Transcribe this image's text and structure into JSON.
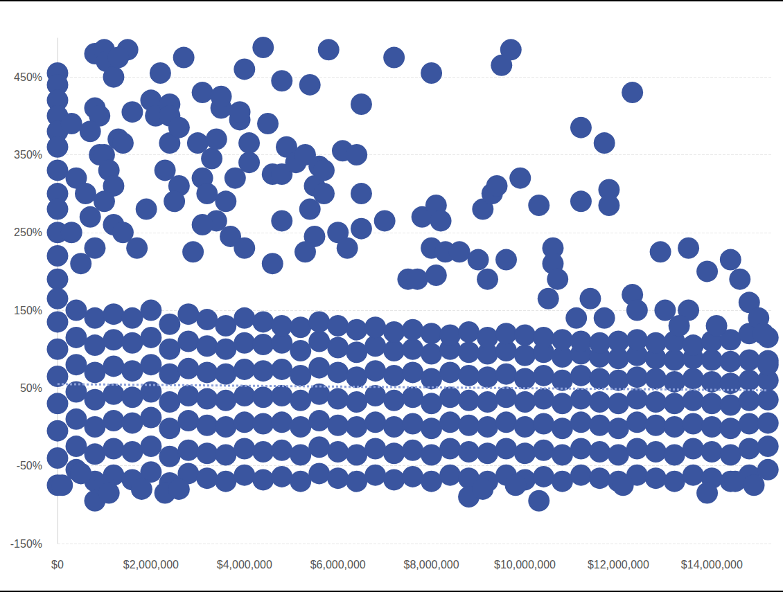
{
  "chart_data": {
    "type": "scatter",
    "xlim": [
      0,
      15300000
    ],
    "xticks": [
      {
        "value": 0,
        "label": "$0"
      },
      {
        "value": 2000000,
        "label": "$2,000,000"
      },
      {
        "value": 4000000,
        "label": "$4,000,000"
      },
      {
        "value": 6000000,
        "label": "$6,000,000"
      },
      {
        "value": 8000000,
        "label": "$8,000,000"
      },
      {
        "value": 10000000,
        "label": "$10,000,000"
      },
      {
        "value": 12000000,
        "label": "$12,000,000"
      },
      {
        "value": 14000000,
        "label": "$14,000,000"
      }
    ],
    "ylim": [
      -150,
      500
    ],
    "yticks": [
      {
        "value": -150,
        "label": "-150%"
      },
      {
        "value": -50,
        "label": "-50%"
      },
      {
        "value": 50,
        "label": "50%"
      },
      {
        "value": 150,
        "label": "150%"
      },
      {
        "value": 250,
        "label": "250%"
      },
      {
        "value": 350,
        "label": "350%"
      },
      {
        "value": 450,
        "label": "450%"
      }
    ],
    "grid": true,
    "series": [
      {
        "type": "scatter",
        "color": "#3a559f",
        "marker": "circle",
        "x": [
          0,
          0,
          0,
          0,
          0,
          0,
          0,
          400000,
          400000,
          400000,
          400000,
          400000,
          400000,
          400000,
          800000,
          800000,
          800000,
          800000,
          800000,
          800000,
          800000,
          1200000,
          1200000,
          1200000,
          1200000,
          1200000,
          1200000,
          1200000,
          1600000,
          1600000,
          1600000,
          1600000,
          1600000,
          1600000,
          1600000,
          2000000,
          2000000,
          2000000,
          2000000,
          2000000,
          2000000,
          2000000,
          2400000,
          2400000,
          2400000,
          2400000,
          2400000,
          2400000,
          2400000,
          2800000,
          2800000,
          2800000,
          2800000,
          2800000,
          2800000,
          2800000,
          3200000,
          3200000,
          3200000,
          3200000,
          3200000,
          3200000,
          3200000,
          3600000,
          3600000,
          3600000,
          3600000,
          3600000,
          3600000,
          3600000,
          4000000,
          4000000,
          4000000,
          4000000,
          4000000,
          4000000,
          4000000,
          4400000,
          4400000,
          4400000,
          4400000,
          4400000,
          4400000,
          4400000,
          4800000,
          4800000,
          4800000,
          4800000,
          4800000,
          4800000,
          4800000,
          5200000,
          5200000,
          5200000,
          5200000,
          5200000,
          5200000,
          5200000,
          5600000,
          5600000,
          5600000,
          5600000,
          5600000,
          5600000,
          5600000,
          6000000,
          6000000,
          6000000,
          6000000,
          6000000,
          6000000,
          6000000,
          6400000,
          6400000,
          6400000,
          6400000,
          6400000,
          6400000,
          6400000,
          6800000,
          6800000,
          6800000,
          6800000,
          6800000,
          6800000,
          6800000,
          7200000,
          7200000,
          7200000,
          7200000,
          7200000,
          7200000,
          7200000,
          7600000,
          7600000,
          7600000,
          7600000,
          7600000,
          7600000,
          7600000,
          8000000,
          8000000,
          8000000,
          8000000,
          8000000,
          8000000,
          8000000,
          8400000,
          8400000,
          8400000,
          8400000,
          8400000,
          8400000,
          8400000,
          8800000,
          8800000,
          8800000,
          8800000,
          8800000,
          8800000,
          8800000,
          9200000,
          9200000,
          9200000,
          9200000,
          9200000,
          9200000,
          9200000,
          9600000,
          9600000,
          9600000,
          9600000,
          9600000,
          9600000,
          9600000,
          10000000,
          10000000,
          10000000,
          10000000,
          10000000,
          10000000,
          10000000,
          10400000,
          10400000,
          10400000,
          10400000,
          10400000,
          10400000,
          10400000,
          10800000,
          10800000,
          10800000,
          10800000,
          10800000,
          10800000,
          10800000,
          11200000,
          11200000,
          11200000,
          11200000,
          11200000,
          11200000,
          11200000,
          11600000,
          11600000,
          11600000,
          11600000,
          11600000,
          11600000,
          11600000,
          12000000,
          12000000,
          12000000,
          12000000,
          12000000,
          12000000,
          12000000,
          12400000,
          12400000,
          12400000,
          12400000,
          12400000,
          12400000,
          12400000,
          12800000,
          12800000,
          12800000,
          12800000,
          12800000,
          12800000,
          12800000,
          13200000,
          13200000,
          13200000,
          13200000,
          13200000,
          13200000,
          13200000,
          13600000,
          13600000,
          13600000,
          13600000,
          13600000,
          13600000,
          13600000,
          14000000,
          14000000,
          14000000,
          14000000,
          14000000,
          14000000,
          14000000,
          14400000,
          14400000,
          14400000,
          14400000,
          14400000,
          14400000,
          14400000,
          14800000,
          14800000,
          14800000,
          14800000,
          14800000,
          14800000,
          14800000,
          15200000,
          15200000,
          15200000,
          15200000,
          15200000,
          15200000,
          15200000,
          0,
          0,
          0,
          0,
          0,
          0,
          0,
          0,
          0,
          0,
          0,
          0,
          0,
          100000,
          300000,
          400000,
          300000,
          500000,
          800000,
          800000,
          900000,
          1000000,
          1050000,
          1200000,
          1500000,
          1300000,
          900000,
          1000000,
          1100000,
          1200000,
          1300000,
          1400000,
          1600000,
          700000,
          600000,
          700000,
          800000,
          1000000,
          1200000,
          1400000,
          1700000,
          1900000,
          2000000,
          2200000,
          2100000,
          2400000,
          2400000,
          2400000,
          2300000,
          2600000,
          2700000,
          2600000,
          2500000,
          3100000,
          3000000,
          3100000,
          3300000,
          3400000,
          3500000,
          3500000,
          3200000,
          3400000,
          3600000,
          3100000,
          2900000,
          4000000,
          3900000,
          3900000,
          3800000,
          4100000,
          4100000,
          3700000,
          4000000,
          4400000,
          4500000,
          4800000,
          4600000,
          4800000,
          4900000,
          5100000,
          4800000,
          4600000,
          5400000,
          5300000,
          5500000,
          5600000,
          5400000,
          5500000,
          5700000,
          5700000,
          5300000,
          5800000,
          6100000,
          6400000,
          6500000,
          6500000,
          6500000,
          6000000,
          6200000,
          7200000,
          7000000,
          7500000,
          7700000,
          7800000,
          8000000,
          8100000,
          8000000,
          8200000,
          8300000,
          8100000,
          8600000,
          9100000,
          9300000,
          9400000,
          9500000,
          9700000,
          9000000,
          9600000,
          9200000,
          9900000,
          10300000,
          10600000,
          10600000,
          10700000,
          10500000,
          11200000,
          11200000,
          11400000,
          11100000,
          11700000,
          11800000,
          11800000,
          11700000,
          12300000,
          12300000,
          12400000,
          12900000,
          13000000,
          13500000,
          13500000,
          13300000,
          13900000,
          14100000,
          14400000,
          14600000,
          14800000,
          15000000,
          15100000,
          15200000,
          800000,
          1000000,
          1100000,
          1800000,
          2300000,
          2600000,
          500000,
          8800000,
          10300000,
          13900000,
          14500000,
          14900000,
          12100000,
          9100000,
          9800000
        ],
        "values": [
          -75,
          -40,
          -5,
          30,
          65,
          100,
          135,
          -55,
          -25,
          10,
          45,
          80,
          115,
          150,
          -70,
          -35,
          0,
          35,
          70,
          105,
          140,
          -62,
          -28,
          8,
          42,
          78,
          112,
          145,
          -68,
          -32,
          5,
          38,
          72,
          108,
          140,
          -58,
          -25,
          12,
          45,
          80,
          115,
          150,
          -72,
          -38,
          -2,
          32,
          68,
          100,
          132,
          -60,
          -30,
          8,
          40,
          75,
          110,
          145,
          -66,
          -34,
          2,
          36,
          70,
          104,
          138,
          -70,
          -36,
          0,
          34,
          68,
          100,
          130,
          -62,
          -28,
          6,
          40,
          74,
          108,
          140,
          -68,
          -32,
          4,
          38,
          72,
          106,
          135,
          -64,
          -30,
          6,
          40,
          74,
          108,
          130,
          -70,
          -36,
          0,
          34,
          66,
          98,
          128,
          -60,
          -26,
          8,
          42,
          76,
          110,
          135,
          -66,
          -32,
          2,
          36,
          70,
          102,
          130,
          -70,
          -36,
          0,
          32,
          64,
          96,
          125,
          -62,
          -28,
          6,
          40,
          72,
          104,
          128,
          -68,
          -34,
          0,
          34,
          66,
          98,
          122,
          -64,
          -30,
          4,
          38,
          70,
          100,
          125,
          -70,
          -36,
          -2,
          30,
          62,
          94,
          120,
          -62,
          -28,
          6,
          38,
          70,
          100,
          118,
          -66,
          -32,
          2,
          34,
          66,
          96,
          122,
          -70,
          -34,
          0,
          32,
          64,
          94,
          115,
          -62,
          -28,
          6,
          38,
          68,
          98,
          120,
          -68,
          -34,
          0,
          32,
          62,
          92,
          118,
          -64,
          -30,
          4,
          36,
          66,
          96,
          115,
          -70,
          -36,
          -2,
          30,
          60,
          90,
          112,
          -62,
          -28,
          6,
          36,
          66,
          94,
          110,
          -66,
          -32,
          2,
          32,
          62,
          90,
          108,
          -70,
          -36,
          -2,
          30,
          60,
          88,
          110,
          -62,
          -28,
          6,
          36,
          64,
          92,
          112,
          -66,
          -32,
          2,
          32,
          62,
          88,
          108,
          -70,
          -36,
          0,
          30,
          58,
          86,
          110,
          -62,
          -28,
          4,
          34,
          62,
          88,
          105,
          -66,
          -32,
          0,
          30,
          58,
          86,
          110,
          -70,
          -36,
          -2,
          28,
          56,
          84,
          112,
          -62,
          -28,
          4,
          34,
          60,
          86,
          120,
          -55,
          -25,
          5,
          35,
          60,
          85,
          115,
          455,
          440,
          420,
          400,
          380,
          360,
          330,
          300,
          280,
          250,
          220,
          190,
          165,
          -75,
          390,
          320,
          250,
          210,
          480,
          410,
          400,
          485,
          470,
          450,
          485,
          475,
          350,
          350,
          330,
          310,
          370,
          365,
          405,
          380,
          300,
          270,
          230,
          290,
          260,
          250,
          230,
          280,
          420,
          455,
          400,
          415,
          400,
          365,
          330,
          385,
          475,
          310,
          290,
          430,
          365,
          320,
          345,
          370,
          410,
          425,
          300,
          265,
          290,
          260,
          225,
          460,
          395,
          405,
          320,
          365,
          340,
          245,
          230,
          488,
          390,
          445,
          325,
          325,
          360,
          340,
          265,
          210,
          440,
          350,
          310,
          335,
          280,
          245,
          330,
          300,
          225,
          485,
          355,
          350,
          415,
          300,
          255,
          250,
          230,
          475,
          265,
          190,
          190,
          270,
          230,
          285,
          455,
          265,
          225,
          195,
          225,
          280,
          300,
          310,
          465,
          485,
          215,
          215,
          190,
          320,
          285,
          230,
          210,
          190,
          165,
          385,
          290,
          165,
          140,
          365,
          305,
          285,
          140,
          430,
          170,
          150,
          225,
          150,
          230,
          150,
          130,
          200,
          130,
          215,
          190,
          160,
          140,
          120,
          80,
          -95,
          -75,
          -85,
          -80,
          -85,
          -80,
          -60,
          -90,
          -95,
          -85,
          -70,
          -75,
          -75,
          -80,
          -75
        ]
      },
      {
        "type": "line",
        "color": "#8b9fd8",
        "line_style": "dotted",
        "x": [
          0,
          15200000
        ],
        "values": [
          55,
          47
        ]
      }
    ]
  }
}
